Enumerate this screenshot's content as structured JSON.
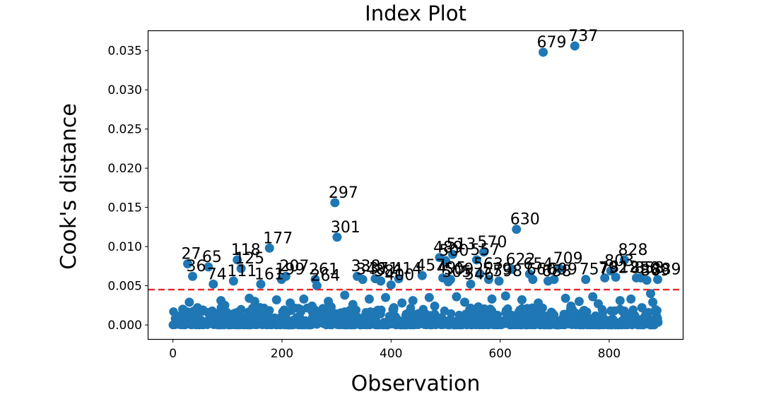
{
  "chart_data": {
    "type": "scatter",
    "title": "Index Plot",
    "xlabel": "Observation",
    "ylabel": "Cook's distance",
    "xlim": [
      -45,
      935
    ],
    "ylim": [
      -0.0018,
      0.0375
    ],
    "xticks": [
      0,
      200,
      400,
      600,
      800
    ],
    "xtick_labels": [
      "0",
      "200",
      "400",
      "600",
      "800"
    ],
    "yticks": [
      0,
      0.005,
      0.01,
      0.015,
      0.02,
      0.025,
      0.03,
      0.035
    ],
    "ytick_labels": [
      "0.000",
      "0.005",
      "0.010",
      "0.015",
      "0.020",
      "0.025",
      "0.030",
      "0.035"
    ],
    "grid": false,
    "threshold": {
      "y": 0.0045,
      "color": "#e8272b",
      "style": "dashed"
    },
    "point_color": "#1f77b4",
    "points": [
      {
        "x": 679,
        "y": 0.0348,
        "label": "679"
      },
      {
        "x": 737,
        "y": 0.0356,
        "label": "737"
      },
      {
        "x": 297,
        "y": 0.0156,
        "label": "297"
      },
      {
        "x": 630,
        "y": 0.0122,
        "label": "630"
      },
      {
        "x": 301,
        "y": 0.0112,
        "label": "301"
      },
      {
        "x": 177,
        "y": 0.0098,
        "label": "177"
      },
      {
        "x": 570,
        "y": 0.0093,
        "label": "570"
      },
      {
        "x": 828,
        "y": 0.0083,
        "label": "828"
      },
      {
        "x": 118,
        "y": 0.0083,
        "label": "118"
      },
      {
        "x": 27,
        "y": 0.0078,
        "label": "27"
      },
      {
        "x": 65,
        "y": 0.0074,
        "label": "65"
      },
      {
        "x": 125,
        "y": 0.0072,
        "label": "125"
      },
      {
        "x": 709,
        "y": 0.0072,
        "label": "709"
      },
      {
        "x": 36,
        "y": 0.0062,
        "label": "36"
      },
      {
        "x": 74,
        "y": 0.0052,
        "label": "74"
      },
      {
        "x": 111,
        "y": 0.0056,
        "label": "111"
      },
      {
        "x": 161,
        "y": 0.0052,
        "label": "161"
      },
      {
        "x": 207,
        "y": 0.0062,
        "label": "207"
      },
      {
        "x": 199,
        "y": 0.0058,
        "label": "199"
      },
      {
        "x": 261,
        "y": 0.0058,
        "label": "261"
      },
      {
        "x": 264,
        "y": 0.005,
        "label": "264"
      },
      {
        "x": 338,
        "y": 0.0062,
        "label": "338"
      },
      {
        "x": 348,
        "y": 0.0058,
        "label": "348"
      },
      {
        "x": 371,
        "y": 0.0059,
        "label": "371"
      },
      {
        "x": 381,
        "y": 0.0056,
        "label": "381"
      },
      {
        "x": 400,
        "y": 0.0051,
        "label": "400"
      },
      {
        "x": 414,
        "y": 0.0059,
        "label": "414"
      },
      {
        "x": 457,
        "y": 0.0063,
        "label": "457"
      },
      {
        "x": 489,
        "y": 0.0086,
        "label": "489"
      },
      {
        "x": 500,
        "y": 0.0082,
        "label": "500"
      },
      {
        "x": 513,
        "y": 0.009,
        "label": "513"
      },
      {
        "x": 557,
        "y": 0.0083,
        "label": "557"
      },
      {
        "x": 495,
        "y": 0.006,
        "label": "495"
      },
      {
        "x": 505,
        "y": 0.0055,
        "label": "505"
      },
      {
        "x": 509,
        "y": 0.0058,
        "label": "509"
      },
      {
        "x": 546,
        "y": 0.0052,
        "label": "546"
      },
      {
        "x": 563,
        "y": 0.0065,
        "label": "563"
      },
      {
        "x": 579,
        "y": 0.0058,
        "label": "579"
      },
      {
        "x": 598,
        "y": 0.0056,
        "label": "598"
      },
      {
        "x": 622,
        "y": 0.0071,
        "label": "622"
      },
      {
        "x": 654,
        "y": 0.0065,
        "label": "654"
      },
      {
        "x": 660,
        "y": 0.0058,
        "label": "660"
      },
      {
        "x": 688,
        "y": 0.0056,
        "label": "688"
      },
      {
        "x": 699,
        "y": 0.0058,
        "label": "699"
      },
      {
        "x": 757,
        "y": 0.0058,
        "label": "757"
      },
      {
        "x": 792,
        "y": 0.006,
        "label": "792"
      },
      {
        "x": 803,
        "y": 0.0069,
        "label": "803"
      },
      {
        "x": 812,
        "y": 0.0061,
        "label": "812"
      },
      {
        "x": 850,
        "y": 0.006,
        "label": "850"
      },
      {
        "x": 858,
        "y": 0.006,
        "label": "858"
      },
      {
        "x": 869,
        "y": 0.0057,
        "label": "869"
      },
      {
        "x": 889,
        "y": 0.0058,
        "label": "889"
      },
      {
        "x": 30,
        "y": 0.0029
      },
      {
        "x": 45,
        "y": 0.0022
      },
      {
        "x": 55,
        "y": 0.0019
      },
      {
        "x": 88,
        "y": 0.0031
      },
      {
        "x": 95,
        "y": 0.0025
      },
      {
        "x": 140,
        "y": 0.0034
      },
      {
        "x": 150,
        "y": 0.003
      },
      {
        "x": 190,
        "y": 0.0032
      },
      {
        "x": 215,
        "y": 0.0028
      },
      {
        "x": 240,
        "y": 0.0033
      },
      {
        "x": 255,
        "y": 0.0024
      },
      {
        "x": 285,
        "y": 0.003
      },
      {
        "x": 315,
        "y": 0.0038
      },
      {
        "x": 330,
        "y": 0.0026
      },
      {
        "x": 360,
        "y": 0.0033
      },
      {
        "x": 390,
        "y": 0.0035
      },
      {
        "x": 420,
        "y": 0.0028
      },
      {
        "x": 440,
        "y": 0.0031
      },
      {
        "x": 470,
        "y": 0.0035
      },
      {
        "x": 520,
        "y": 0.0036
      },
      {
        "x": 535,
        "y": 0.0029
      },
      {
        "x": 585,
        "y": 0.0033
      },
      {
        "x": 610,
        "y": 0.0037
      },
      {
        "x": 640,
        "y": 0.0032
      },
      {
        "x": 670,
        "y": 0.0028
      },
      {
        "x": 720,
        "y": 0.0034
      },
      {
        "x": 745,
        "y": 0.003
      },
      {
        "x": 770,
        "y": 0.0036
      },
      {
        "x": 780,
        "y": 0.0027
      },
      {
        "x": 820,
        "y": 0.0031
      },
      {
        "x": 840,
        "y": 0.0033
      },
      {
        "x": 876,
        "y": 0.004
      },
      {
        "x": 880,
        "y": 0.0029
      },
      {
        "x": 18,
        "y": 0.002
      },
      {
        "x": 160,
        "y": 0.0022
      },
      {
        "x": 230,
        "y": 0.0021
      },
      {
        "x": 290,
        "y": 0.0023
      },
      {
        "x": 405,
        "y": 0.0022
      },
      {
        "x": 480,
        "y": 0.0024
      },
      {
        "x": 560,
        "y": 0.0023
      },
      {
        "x": 650,
        "y": 0.0021
      },
      {
        "x": 730,
        "y": 0.0024
      },
      {
        "x": 860,
        "y": 0.0022
      }
    ]
  }
}
